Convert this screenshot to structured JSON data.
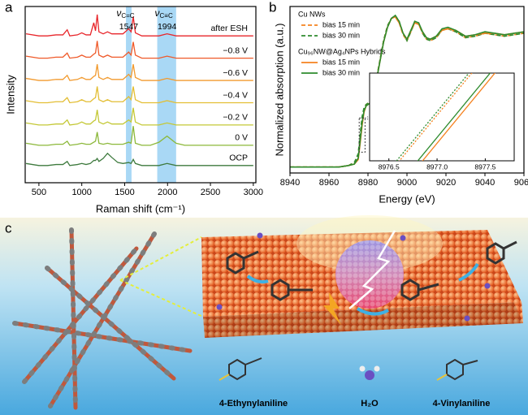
{
  "chart_data": [
    {
      "type": "line",
      "panel": "a",
      "x_label": "Raman shift (cm⁻¹)",
      "y_label": "Intensity",
      "xlim": [
        340,
        3030
      ],
      "xticks": [
        500,
        1000,
        1500,
        2000,
        2500,
        3000
      ],
      "ylim": [
        0,
        8.7
      ],
      "series_labels": "inline",
      "x": [
        350,
        500,
        600,
        700,
        780,
        830,
        860,
        950,
        1000,
        1050,
        1100,
        1140,
        1160,
        1180,
        1200,
        1250,
        1300,
        1350,
        1420,
        1480,
        1547,
        1575,
        1600,
        1625,
        1700,
        1800,
        1900,
        1994,
        2100,
        2200,
        2400,
        2600,
        2800,
        3000
      ],
      "series": [
        {
          "name": "after ESH",
          "color": "#e8262b",
          "values": [
            7.35,
            7.25,
            7.25,
            7.3,
            7.3,
            7.55,
            7.25,
            7.3,
            7.4,
            7.3,
            7.3,
            7.9,
            7.5,
            8.3,
            7.45,
            7.35,
            7.45,
            7.35,
            7.35,
            7.35,
            7.6,
            7.45,
            8.2,
            7.4,
            7.25,
            7.25,
            7.25,
            7.35,
            7.25,
            7.25,
            7.25,
            7.25,
            7.25,
            7.25
          ]
        },
        {
          "name": "−0.8 V",
          "color": "#ef5a2a",
          "values": [
            6.25,
            6.15,
            6.15,
            6.2,
            6.2,
            6.4,
            6.15,
            6.2,
            6.3,
            6.2,
            6.2,
            6.35,
            6.4,
            7.0,
            6.3,
            6.2,
            6.3,
            6.2,
            6.2,
            6.2,
            6.45,
            6.3,
            6.95,
            6.3,
            6.15,
            6.15,
            6.15,
            6.25,
            6.15,
            6.15,
            6.15,
            6.15,
            6.15,
            6.15
          ]
        },
        {
          "name": "−0.6 V",
          "color": "#f29a2e",
          "values": [
            5.15,
            5.05,
            5.05,
            5.1,
            5.1,
            5.3,
            5.05,
            5.1,
            5.2,
            5.1,
            5.1,
            5.25,
            5.3,
            5.85,
            5.2,
            5.1,
            5.2,
            5.1,
            5.1,
            5.1,
            5.35,
            5.2,
            5.85,
            5.2,
            5.05,
            5.05,
            5.05,
            5.15,
            5.05,
            5.05,
            5.05,
            5.05,
            5.05,
            5.05
          ]
        },
        {
          "name": "−0.4 V",
          "color": "#e3be34",
          "values": [
            4.05,
            3.95,
            3.95,
            4.0,
            4.0,
            4.2,
            3.95,
            4.0,
            4.1,
            4.0,
            4.0,
            4.15,
            4.2,
            4.75,
            4.1,
            4.0,
            4.1,
            4.0,
            4.0,
            4.0,
            4.25,
            4.1,
            4.75,
            4.1,
            3.95,
            3.95,
            3.95,
            4.05,
            3.95,
            3.95,
            3.95,
            3.95,
            3.95,
            3.95
          ]
        },
        {
          "name": "−0.2 V",
          "color": "#c4c836",
          "values": [
            2.95,
            2.85,
            2.85,
            2.9,
            2.9,
            3.1,
            2.85,
            2.9,
            3.0,
            2.9,
            2.9,
            3.05,
            3.1,
            3.6,
            3.0,
            2.9,
            3.0,
            2.9,
            2.9,
            2.9,
            3.1,
            3.0,
            3.7,
            3.0,
            2.85,
            2.85,
            2.85,
            2.95,
            2.85,
            2.85,
            2.85,
            2.85,
            2.85,
            2.85
          ]
        },
        {
          "name": "0 V",
          "color": "#8cb83a",
          "values": [
            1.95,
            1.85,
            1.85,
            1.9,
            1.9,
            2.05,
            1.85,
            1.9,
            1.95,
            1.9,
            1.9,
            2.0,
            2.05,
            2.5,
            1.95,
            1.9,
            1.95,
            1.9,
            1.9,
            1.9,
            2.0,
            1.95,
            2.8,
            1.95,
            1.85,
            1.85,
            2.0,
            2.3,
            1.95,
            1.85,
            1.85,
            1.85,
            1.85,
            1.85
          ]
        },
        {
          "name": "OCP",
          "color": "#3e7a3e",
          "values": [
            0.95,
            0.85,
            0.85,
            0.9,
            0.9,
            1.05,
            0.85,
            0.9,
            0.95,
            0.9,
            0.95,
            1.1,
            1.1,
            1.2,
            1.05,
            1.2,
            1.45,
            1.25,
            1.0,
            0.95,
            1.0,
            0.95,
            1.15,
            0.95,
            0.85,
            0.85,
            0.85,
            0.95,
            0.85,
            0.85,
            0.85,
            0.85,
            0.85,
            0.85
          ]
        }
      ],
      "highlight_bands": [
        [
          1515,
          1580
        ],
        [
          1880,
          2100
        ]
      ],
      "band_color": "#a9d8f5",
      "annotations": [
        {
          "symbol": "ν",
          "subscript": "C=C",
          "x": 1547
        },
        {
          "symbol": "ν",
          "subscript": "C≡C",
          "x": 1994
        }
      ]
    },
    {
      "type": "line",
      "panel": "b",
      "x_label": "Energy (eV)",
      "y_label": "Normalized absorption (a.u.)",
      "xlim": [
        8940,
        9060
      ],
      "xticks": [
        8940,
        8960,
        8980,
        9000,
        9020,
        9040,
        9060
      ],
      "ylim": [
        -0.02,
        1.1
      ],
      "legend": "upper left",
      "x": [
        8940,
        8950,
        8960,
        8965,
        8970,
        8973,
        8975,
        8976,
        8977,
        8978,
        8979,
        8980,
        8981,
        8982,
        8984,
        8986,
        8988,
        8990,
        8992,
        8994,
        8996,
        8998,
        9000,
        9002,
        9004,
        9006,
        9008,
        9010,
        9012,
        9015,
        9018,
        9021,
        9025,
        9030,
        9035,
        9040,
        9045,
        9050,
        9055,
        9060
      ],
      "series_groups": [
        {
          "name": "Cu NWs",
          "dashed": true,
          "series": [
            {
              "name": "bias 15 min",
              "color": "#f5821f",
              "values": [
                0.02,
                0.02,
                0.02,
                0.02,
                0.03,
                0.05,
                0.1,
                0.23,
                0.35,
                0.41,
                0.44,
                0.45,
                0.46,
                0.49,
                0.59,
                0.73,
                0.87,
                0.97,
                1.02,
                1.03,
                0.99,
                0.91,
                0.87,
                0.93,
                0.99,
                0.98,
                0.92,
                0.88,
                0.87,
                0.89,
                0.94,
                0.95,
                0.93,
                0.89,
                0.9,
                0.92,
                0.91,
                0.9,
                0.91,
                0.92
              ],
              "inset_values": [
                -0.413,
                1.587
              ]
            },
            {
              "name": "bias 30 min",
              "color": "#2e8b2e",
              "values": [
                0.02,
                0.02,
                0.02,
                0.02,
                0.03,
                0.05,
                0.11,
                0.24,
                0.36,
                0.42,
                0.44,
                0.45,
                0.46,
                0.49,
                0.59,
                0.73,
                0.87,
                0.97,
                1.02,
                1.04,
                1.0,
                0.92,
                0.87,
                0.93,
                1.0,
                0.99,
                0.92,
                0.88,
                0.87,
                0.89,
                0.94,
                0.95,
                0.93,
                0.89,
                0.9,
                0.92,
                0.91,
                0.9,
                0.91,
                0.92
              ],
              "inset_values": [
                -0.373,
                1.627
              ]
            }
          ]
        },
        {
          "name": "Cu₉₆NW@Ag₄NPs Hybrids",
          "dashed": false,
          "series": [
            {
              "name": "bias 15 min",
              "color": "#f5821f",
              "values": [
                0.02,
                0.02,
                0.02,
                0.02,
                0.03,
                0.04,
                0.07,
                0.18,
                0.3,
                0.39,
                0.43,
                0.44,
                0.45,
                0.48,
                0.58,
                0.72,
                0.86,
                0.96,
                1.02,
                1.03,
                0.99,
                0.92,
                0.88,
                0.94,
                0.99,
                0.98,
                0.93,
                0.89,
                0.88,
                0.9,
                0.94,
                0.95,
                0.94,
                0.9,
                0.91,
                0.92,
                0.92,
                0.91,
                0.92,
                0.93
              ],
              "inset_values": [
                -0.733,
                1.267
              ]
            },
            {
              "name": "bias 30 min",
              "color": "#2e8b2e",
              "values": [
                0.02,
                0.02,
                0.02,
                0.02,
                0.03,
                0.04,
                0.08,
                0.2,
                0.32,
                0.4,
                0.43,
                0.44,
                0.45,
                0.48,
                0.58,
                0.72,
                0.86,
                0.96,
                1.02,
                1.04,
                1.0,
                0.92,
                0.88,
                0.94,
                1.0,
                0.99,
                0.93,
                0.89,
                0.88,
                0.9,
                0.95,
                0.96,
                0.94,
                0.9,
                0.91,
                0.93,
                0.92,
                0.91,
                0.92,
                0.93
              ],
              "inset_values": [
                -0.667,
                1.333
              ]
            }
          ]
        }
      ],
      "inset": {
        "xlim": [
          8976.3,
          8977.8
        ],
        "xticks": [
          8976.5,
          {
            "value": 8977,
            "label": "8977.0"
          },
          8977.5
        ],
        "ylim": [
          0,
          1
        ],
        "x": [
          8976.3,
          8977.8
        ]
      }
    }
  ],
  "panel_c": {
    "label": "c",
    "molecules": [
      "4-Ethynylaniline",
      "H₂O",
      "4-Vinylaniline"
    ]
  }
}
